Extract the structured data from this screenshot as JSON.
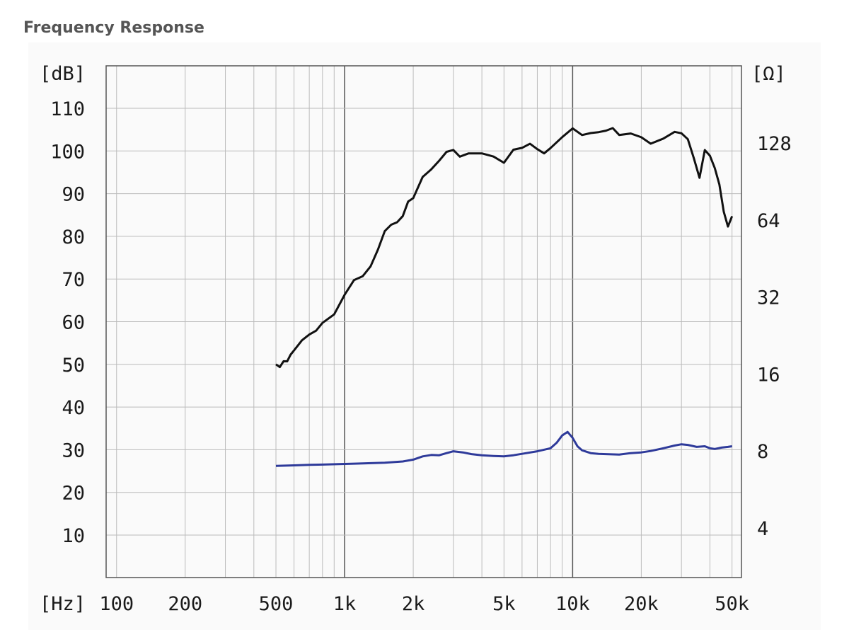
{
  "title": "Frequency Response",
  "colors": {
    "spl": "#111111",
    "impedance": "#2e3a9a",
    "grid": "#bbbbbb",
    "majorGrid": "#555555"
  },
  "chart_data": {
    "type": "line",
    "title": "Frequency Response",
    "x_unit_label": "[Hz]",
    "y_left_unit_label": "[dB]",
    "y_right_unit_label": "[Ω]",
    "x_scale": "log",
    "xlim": [
      90,
      55000
    ],
    "ylim_left": [
      0,
      110
    ],
    "ylim_right_log2": [
      2,
      7.6
    ],
    "grid": true,
    "x_ticks": [
      {
        "value": 100,
        "label": "100"
      },
      {
        "value": 200,
        "label": "200"
      },
      {
        "value": 500,
        "label": "500"
      },
      {
        "value": 1000,
        "label": "1k"
      },
      {
        "value": 2000,
        "label": "2k"
      },
      {
        "value": 5000,
        "label": "5k"
      },
      {
        "value": 10000,
        "label": "10k"
      },
      {
        "value": 20000,
        "label": "20k"
      },
      {
        "value": 50000,
        "label": "50k"
      }
    ],
    "y_left_ticks": [
      10,
      20,
      30,
      40,
      50,
      60,
      70,
      80,
      90,
      100,
      110
    ],
    "y_right_ticks": [
      4,
      8,
      16,
      32,
      64,
      128
    ],
    "series": [
      {
        "axis": "left",
        "color": "#111111",
        "x": [
          500,
          520,
          540,
          560,
          580,
          600,
          650,
          700,
          750,
          800,
          900,
          1000,
          1100,
          1200,
          1300,
          1400,
          1500,
          1600,
          1700,
          1800,
          1900,
          2000,
          2200,
          2400,
          2600,
          2800,
          3000,
          3200,
          3500,
          4000,
          4500,
          5000,
          5500,
          6000,
          6500,
          7000,
          7500,
          8000,
          9000,
          10000,
          11000,
          12000,
          13000,
          14000,
          15000,
          16000,
          18000,
          20000,
          22000,
          25000,
          28000,
          30000,
          32000,
          34000,
          36000,
          38000,
          40000,
          42000,
          44000,
          46000,
          48000,
          50000
        ],
        "y": [
          50,
          49.5,
          50.5,
          51,
          52,
          53.5,
          55.5,
          57,
          58,
          59.5,
          62,
          66,
          70,
          70.5,
          73,
          77,
          81,
          83,
          83,
          85,
          88,
          89,
          94,
          95.5,
          98,
          99.5,
          100.5,
          98.5,
          99.5,
          99.5,
          98.5,
          97.5,
          100,
          101,
          101.5,
          100.5,
          99.5,
          100.5,
          103.5,
          105,
          104,
          104,
          104.5,
          104.8,
          105.2,
          104,
          103.8,
          103.5,
          101.5,
          103,
          104.5,
          104,
          103,
          98,
          94,
          100,
          99,
          96,
          92,
          86,
          82,
          85
        ]
      },
      {
        "axis": "right",
        "color": "#2e3a9a",
        "x": [
          500,
          600,
          700,
          800,
          1000,
          1200,
          1500,
          1800,
          2000,
          2200,
          2400,
          2600,
          2800,
          3000,
          3300,
          3600,
          4000,
          4500,
          5000,
          5500,
          6000,
          7000,
          8000,
          8500,
          9000,
          9500,
          10000,
          10500,
          11000,
          12000,
          13000,
          14000,
          16000,
          18000,
          20000,
          22000,
          25000,
          28000,
          30000,
          32000,
          35000,
          38000,
          40000,
          42000,
          45000,
          48000,
          50000
        ],
        "y": [
          7.0,
          7.03,
          7.06,
          7.08,
          7.12,
          7.15,
          7.2,
          7.28,
          7.4,
          7.62,
          7.72,
          7.7,
          7.85,
          7.98,
          7.9,
          7.78,
          7.7,
          7.65,
          7.62,
          7.7,
          7.8,
          7.98,
          8.2,
          8.6,
          9.2,
          9.5,
          9.0,
          8.35,
          8.05,
          7.85,
          7.8,
          7.78,
          7.75,
          7.85,
          7.9,
          8.0,
          8.2,
          8.4,
          8.5,
          8.45,
          8.3,
          8.35,
          8.2,
          8.15,
          8.25,
          8.3,
          8.35
        ]
      }
    ]
  }
}
